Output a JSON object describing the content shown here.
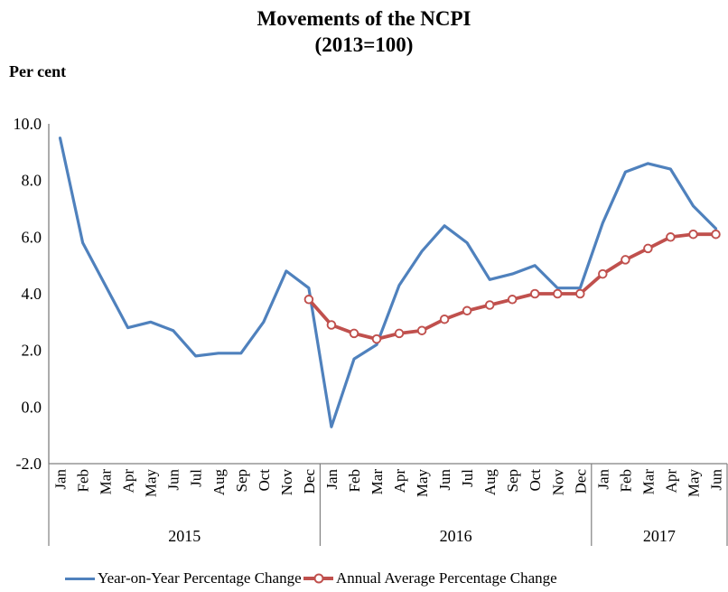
{
  "title": {
    "line1": "Movements of the NCPI",
    "line2": "(2013=100)"
  },
  "y_axis_label": "Per cent",
  "colors": {
    "yoy_line": "#4F81BD",
    "annual_avg_line": "#C0504D",
    "axis": "#808080",
    "text": "#000000"
  },
  "legend": {
    "items": [
      {
        "label": "Year-on-Year Percentage Change",
        "color": "#4F81BD",
        "marker": false
      },
      {
        "label": "Annual Average Percentage Change",
        "color": "#C0504D",
        "marker": true
      }
    ]
  },
  "chart_data": {
    "type": "line",
    "title": "Movements of the NCPI (2013=100)",
    "ylabel": "Per cent",
    "xlabel": "",
    "grid": false,
    "legend_position": "bottom",
    "ylim": [
      -2.0,
      10.0
    ],
    "y_ticks": [
      10.0,
      8.0,
      6.0,
      4.0,
      2.0,
      0.0,
      -2.0
    ],
    "x": [
      "Jan",
      "Feb",
      "Mar",
      "Apr",
      "May",
      "Jun",
      "Jul",
      "Aug",
      "Sep",
      "Oct",
      "Nov",
      "Dec",
      "Jan",
      "Feb",
      "Mar",
      "Apr",
      "May",
      "Jun",
      "Jul",
      "Aug",
      "Sep",
      "Oct",
      "Nov",
      "Dec",
      "Jan",
      "Feb",
      "Mar",
      "Apr",
      "May",
      "Jun"
    ],
    "year_groups": [
      {
        "label": "2015",
        "span": 12
      },
      {
        "label": "2016",
        "span": 12
      },
      {
        "label": "2017",
        "span": 6
      }
    ],
    "series": [
      {
        "name": "Year-on-Year Percentage Change",
        "color": "#4F81BD",
        "marker": false,
        "values": [
          9.5,
          5.8,
          4.3,
          2.8,
          3.0,
          2.7,
          1.8,
          1.9,
          1.9,
          3.0,
          4.8,
          4.2,
          -0.7,
          1.7,
          2.2,
          4.3,
          5.5,
          6.4,
          5.8,
          4.5,
          4.7,
          5.0,
          4.2,
          4.2,
          6.5,
          8.3,
          8.6,
          8.4,
          7.1,
          6.3
        ]
      },
      {
        "name": "Annual Average Percentage Change",
        "color": "#C0504D",
        "marker": true,
        "values": [
          null,
          null,
          null,
          null,
          null,
          null,
          null,
          null,
          null,
          null,
          null,
          3.8,
          2.9,
          2.6,
          2.4,
          2.6,
          2.7,
          3.1,
          3.4,
          3.6,
          3.8,
          4.0,
          4.0,
          4.0,
          4.7,
          5.2,
          5.6,
          6.0,
          6.1,
          6.1
        ]
      }
    ]
  }
}
